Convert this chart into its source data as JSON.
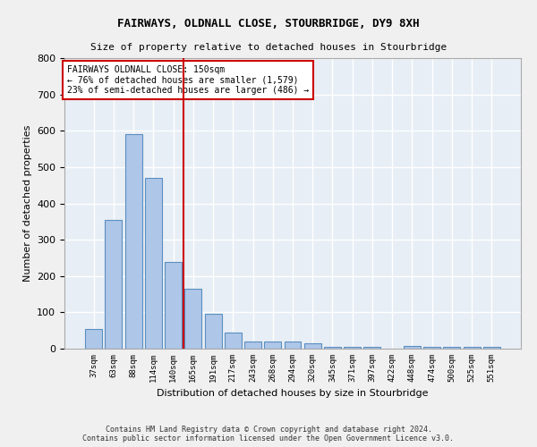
{
  "title": "FAIRWAYS, OLDNALL CLOSE, STOURBRIDGE, DY9 8XH",
  "subtitle": "Size of property relative to detached houses in Stourbridge",
  "xlabel": "Distribution of detached houses by size in Stourbridge",
  "ylabel": "Number of detached properties",
  "bar_labels": [
    "37sqm",
    "63sqm",
    "88sqm",
    "114sqm",
    "140sqm",
    "165sqm",
    "191sqm",
    "217sqm",
    "243sqm",
    "268sqm",
    "294sqm",
    "320sqm",
    "345sqm",
    "371sqm",
    "397sqm",
    "422sqm",
    "448sqm",
    "474sqm",
    "500sqm",
    "525sqm",
    "551sqm"
  ],
  "bar_values": [
    55,
    355,
    590,
    470,
    240,
    165,
    95,
    45,
    20,
    20,
    20,
    15,
    5,
    5,
    5,
    0,
    8,
    5,
    5,
    5,
    5
  ],
  "bar_color": "#aec6e8",
  "bar_edge_color": "#5a8fc0",
  "background_color": "#e8eef5",
  "grid_color": "#ffffff",
  "marker_line_color": "#cc0000",
  "marker_box_color": "#cc0000",
  "annotation_line1": "FAIRWAYS OLDNALL CLOSE: 150sqm",
  "annotation_line2": "← 76% of detached houses are smaller (1,579)",
  "annotation_line3": "23% of semi-detached houses are larger (486) →",
  "ylim": [
    0,
    800
  ],
  "yticks": [
    0,
    100,
    200,
    300,
    400,
    500,
    600,
    700,
    800
  ],
  "footer1": "Contains HM Land Registry data © Crown copyright and database right 2024.",
  "footer2": "Contains public sector information licensed under the Open Government Licence v3.0.",
  "fig_facecolor": "#f0f0f0"
}
